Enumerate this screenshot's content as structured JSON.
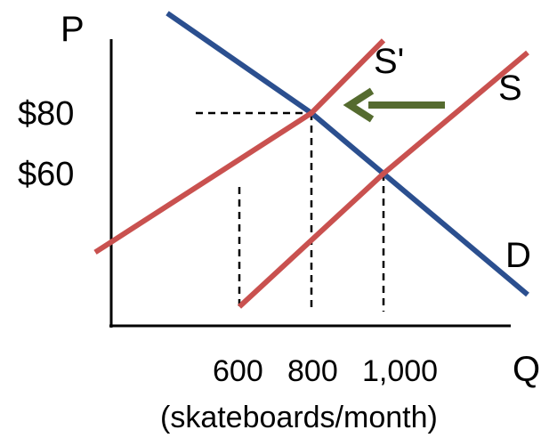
{
  "chart_data": {
    "type": "line",
    "title": "",
    "xlabel": "Q",
    "ylabel": "P",
    "x_unit_label": "(skateboards/month)",
    "x_ticks": [
      600,
      800,
      1000
    ],
    "x_tick_labels": [
      "600",
      "800",
      "1,000"
    ],
    "y_ticks": [
      60,
      80
    ],
    "y_tick_labels": [
      "$60",
      "$80"
    ],
    "series": [
      {
        "name": "D",
        "color": "#2b4f8f",
        "points": [
          [
            400,
            113
          ],
          [
            800,
            80
          ],
          [
            1000,
            60
          ],
          [
            1400,
            20
          ]
        ]
      },
      {
        "name": "S",
        "color": "#c9514f",
        "points": [
          [
            600,
            16
          ],
          [
            1000,
            60
          ],
          [
            1400,
            100
          ]
        ]
      },
      {
        "name": "S'",
        "color": "#c9514f",
        "points": [
          [
            200,
            34
          ],
          [
            800,
            80
          ],
          [
            1000,
            104
          ]
        ]
      }
    ],
    "equilibria": [
      {
        "curve_pair": "D-S'",
        "x": 800,
        "y": 80
      },
      {
        "curve_pair": "D-S",
        "x": 1000,
        "y": 60
      }
    ],
    "reference_quantity": 600,
    "annotation": {
      "type": "arrow",
      "direction": "left",
      "color": "#556b2f",
      "meaning": "supply shifts from S to S'"
    },
    "grid": false,
    "legend": "none"
  }
}
